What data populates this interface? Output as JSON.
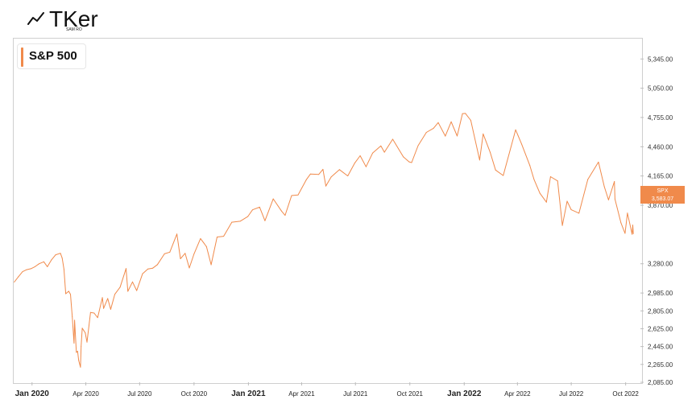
{
  "brand": {
    "name": "TKer",
    "tagline": "SAM RO"
  },
  "chart_data": {
    "type": "line",
    "title": "S&P 500",
    "xlabel": "",
    "ylabel": "",
    "ylim": [
      2085,
      5550
    ],
    "ytick_values": [
      2085,
      2265,
      2445,
      2625,
      2805,
      2985,
      3280,
      3870,
      4165,
      4460,
      4755,
      5050,
      5345
    ],
    "ytick_labels": [
      "2,085.00",
      "2,265.00",
      "2,445.00",
      "2,625.00",
      "2,805.00",
      "2,985.00",
      "3,280.00",
      "3,870.00",
      "4,165.00",
      "4,460.00",
      "4,755.00",
      "5,050.00",
      "5,345.00"
    ],
    "xlim": [
      "2019-12-01",
      "2022-10-26"
    ],
    "xtick_dates": [
      "2020-01-01",
      "2020-04-01",
      "2020-07-01",
      "2020-10-01",
      "2021-01-01",
      "2021-04-01",
      "2021-07-01",
      "2021-10-01",
      "2022-01-01",
      "2022-04-01",
      "2022-07-01",
      "2022-10-01"
    ],
    "xtick_labels": [
      "Jan 2020",
      "Apr 2020",
      "Jul 2020",
      "Oct 2020",
      "Jan 2021",
      "Apr 2021",
      "Jul 2021",
      "Oct 2021",
      "Jan 2022",
      "Apr 2022",
      "Jul 2022",
      "Oct 2022"
    ],
    "xtick_bold": [
      true,
      false,
      false,
      false,
      true,
      false,
      false,
      false,
      true,
      false,
      false,
      false
    ],
    "grid": false,
    "series": [
      {
        "name": "SPX",
        "color": "#f08a4b",
        "points": [
          [
            "2019-12-02",
            3095
          ],
          [
            "2019-12-09",
            3150
          ],
          [
            "2019-12-16",
            3200
          ],
          [
            "2019-12-23",
            3220
          ],
          [
            "2019-12-30",
            3230
          ],
          [
            "2020-01-06",
            3250
          ],
          [
            "2020-01-13",
            3280
          ],
          [
            "2020-01-21",
            3300
          ],
          [
            "2020-01-27",
            3250
          ],
          [
            "2020-02-03",
            3320
          ],
          [
            "2020-02-10",
            3370
          ],
          [
            "2020-02-18",
            3386
          ],
          [
            "2020-02-21",
            3337
          ],
          [
            "2020-02-24",
            3225
          ],
          [
            "2020-02-27",
            2978
          ],
          [
            "2020-03-03",
            3003
          ],
          [
            "2020-03-06",
            2972
          ],
          [
            "2020-03-09",
            2746
          ],
          [
            "2020-03-12",
            2480
          ],
          [
            "2020-03-13",
            2711
          ],
          [
            "2020-03-16",
            2386
          ],
          [
            "2020-03-18",
            2398
          ],
          [
            "2020-03-20",
            2305
          ],
          [
            "2020-03-23",
            2237
          ],
          [
            "2020-03-24",
            2447
          ],
          [
            "2020-03-26",
            2630
          ],
          [
            "2020-03-31",
            2584
          ],
          [
            "2020-04-03",
            2489
          ],
          [
            "2020-04-09",
            2789
          ],
          [
            "2020-04-15",
            2783
          ],
          [
            "2020-04-21",
            2737
          ],
          [
            "2020-04-29",
            2939
          ],
          [
            "2020-05-01",
            2830
          ],
          [
            "2020-05-08",
            2930
          ],
          [
            "2020-05-13",
            2820
          ],
          [
            "2020-05-20",
            2972
          ],
          [
            "2020-05-29",
            3044
          ],
          [
            "2020-06-08",
            3232
          ],
          [
            "2020-06-11",
            3002
          ],
          [
            "2020-06-19",
            3097
          ],
          [
            "2020-06-26",
            3009
          ],
          [
            "2020-07-06",
            3180
          ],
          [
            "2020-07-15",
            3227
          ],
          [
            "2020-07-23",
            3235
          ],
          [
            "2020-07-31",
            3271
          ],
          [
            "2020-08-12",
            3380
          ],
          [
            "2020-08-21",
            3397
          ],
          [
            "2020-09-02",
            3580
          ],
          [
            "2020-09-08",
            3331
          ],
          [
            "2020-09-16",
            3385
          ],
          [
            "2020-09-23",
            3237
          ],
          [
            "2020-10-01",
            3380
          ],
          [
            "2020-10-12",
            3534
          ],
          [
            "2020-10-22",
            3453
          ],
          [
            "2020-10-30",
            3270
          ],
          [
            "2020-11-09",
            3550
          ],
          [
            "2020-11-20",
            3557
          ],
          [
            "2020-12-04",
            3699
          ],
          [
            "2020-12-18",
            3709
          ],
          [
            "2020-12-31",
            3756
          ],
          [
            "2021-01-08",
            3824
          ],
          [
            "2021-01-20",
            3851
          ],
          [
            "2021-01-29",
            3714
          ],
          [
            "2021-02-12",
            3934
          ],
          [
            "2021-02-26",
            3811
          ],
          [
            "2021-03-04",
            3768
          ],
          [
            "2021-03-15",
            3968
          ],
          [
            "2021-03-26",
            3974
          ],
          [
            "2021-04-09",
            4128
          ],
          [
            "2021-04-16",
            4185
          ],
          [
            "2021-04-30",
            4181
          ],
          [
            "2021-05-07",
            4232
          ],
          [
            "2021-05-12",
            4063
          ],
          [
            "2021-05-21",
            4155
          ],
          [
            "2021-06-04",
            4229
          ],
          [
            "2021-06-18",
            4166
          ],
          [
            "2021-06-30",
            4297
          ],
          [
            "2021-07-09",
            4369
          ],
          [
            "2021-07-19",
            4258
          ],
          [
            "2021-07-30",
            4395
          ],
          [
            "2021-08-13",
            4468
          ],
          [
            "2021-08-19",
            4405
          ],
          [
            "2021-09-02",
            4536
          ],
          [
            "2021-09-20",
            4358
          ],
          [
            "2021-09-30",
            4307
          ],
          [
            "2021-10-04",
            4300
          ],
          [
            "2021-10-15",
            4471
          ],
          [
            "2021-10-29",
            4605
          ],
          [
            "2021-11-10",
            4646
          ],
          [
            "2021-11-18",
            4704
          ],
          [
            "2021-11-30",
            4567
          ],
          [
            "2021-12-10",
            4712
          ],
          [
            "2021-12-20",
            4568
          ],
          [
            "2021-12-29",
            4793
          ],
          [
            "2022-01-03",
            4796
          ],
          [
            "2022-01-12",
            4726
          ],
          [
            "2022-01-27",
            4326
          ],
          [
            "2022-02-02",
            4589
          ],
          [
            "2022-02-14",
            4401
          ],
          [
            "2022-02-23",
            4225
          ],
          [
            "2022-03-08",
            4170
          ],
          [
            "2022-03-29",
            4631
          ],
          [
            "2022-04-08",
            4488
          ],
          [
            "2022-04-22",
            4271
          ],
          [
            "2022-04-29",
            4131
          ],
          [
            "2022-05-09",
            3991
          ],
          [
            "2022-05-20",
            3901
          ],
          [
            "2022-05-27",
            4158
          ],
          [
            "2022-06-08",
            4115
          ],
          [
            "2022-06-16",
            3666
          ],
          [
            "2022-06-24",
            3911
          ],
          [
            "2022-07-01",
            3825
          ],
          [
            "2022-07-14",
            3790
          ],
          [
            "2022-07-29",
            4130
          ],
          [
            "2022-08-16",
            4305
          ],
          [
            "2022-08-26",
            4057
          ],
          [
            "2022-09-02",
            3924
          ],
          [
            "2022-09-12",
            4110
          ],
          [
            "2022-09-13",
            3932
          ],
          [
            "2022-09-23",
            3693
          ],
          [
            "2022-09-30",
            3586
          ],
          [
            "2022-10-04",
            3791
          ],
          [
            "2022-10-12",
            3577
          ],
          [
            "2022-10-13",
            3670
          ],
          [
            "2022-10-14",
            3583
          ]
        ]
      }
    ],
    "last_value_label": {
      "series": "SPX",
      "value": "3,583.07"
    }
  }
}
